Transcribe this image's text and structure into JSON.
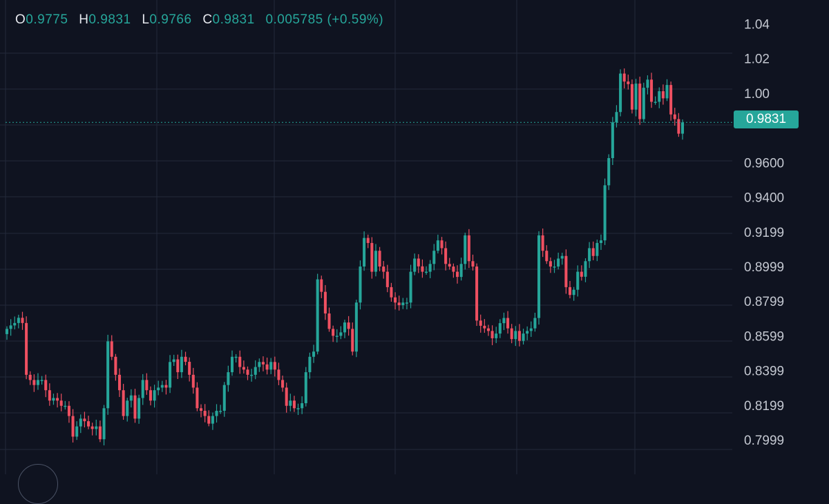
{
  "ohlc": {
    "o_key": "O",
    "o_val": "0.9775",
    "h_key": "H",
    "h_val": "0.9831",
    "l_key": "L",
    "l_val": "0.9766",
    "c_key": "C",
    "c_val": "0.9831",
    "change": "0.005785 (+0.59%)"
  },
  "price_badge": "0.9831",
  "colors": {
    "background": "#0f1320",
    "grid": "#232a3a",
    "up": "#26a69a",
    "down": "#ef5061",
    "tick_text": "#c4c8d1"
  },
  "chart_data": {
    "type": "candlestick",
    "y_axis_ticks": [
      "1.04",
      "1.02",
      "1.00",
      "0.9600",
      "0.9400",
      "0.9199",
      "0.8999",
      "0.8799",
      "0.8599",
      "0.8399",
      "0.8199",
      "0.7999"
    ],
    "ylim": [
      0.7943,
      1.0442
    ],
    "grid": true,
    "last_price": 0.9831,
    "closes": [
      0.8639,
      0.8659,
      0.8673,
      0.8703,
      0.8673,
      0.8374,
      0.8344,
      0.8315,
      0.8344,
      0.8344,
      0.8285,
      0.8225,
      0.824,
      0.8225,
      0.8195,
      0.8195,
      0.8136,
      0.8017,
      0.8076,
      0.8121,
      0.8106,
      0.8076,
      0.8061,
      0.8076,
      0.8002,
      0.8181,
      0.8567,
      0.8478,
      0.8374,
      0.8285,
      0.8136,
      0.8225,
      0.8255,
      0.8121,
      0.824,
      0.8344,
      0.8285,
      0.8225,
      0.8285,
      0.83,
      0.8315,
      0.83,
      0.8448,
      0.8463,
      0.8389,
      0.8478,
      0.8449,
      0.8374,
      0.83,
      0.8181,
      0.8166,
      0.8136,
      0.8092,
      0.8136,
      0.8166,
      0.8166,
      0.8315,
      0.8389,
      0.8478,
      0.8478,
      0.8419,
      0.8404,
      0.8374,
      0.8374,
      0.8419,
      0.8448,
      0.8434,
      0.8404,
      0.8448,
      0.8404,
      0.8344,
      0.83,
      0.8195,
      0.8225,
      0.8181,
      0.8181,
      0.821,
      0.8389,
      0.8478,
      0.8508,
      0.8925,
      0.8853,
      0.8728,
      0.8639,
      0.8599,
      0.8599,
      0.8619,
      0.8676,
      0.8639,
      0.8508,
      0.8791,
      0.8999,
      0.9164,
      0.9135,
      0.8969,
      0.909,
      0.8999,
      0.8969,
      0.888,
      0.8821,
      0.8791,
      0.8776,
      0.8791,
      0.8791,
      0.8969,
      0.9045,
      0.9,
      0.8969,
      0.8969,
      0.9014,
      0.909,
      0.915,
      0.9105,
      0.9014,
      0.8999,
      0.8969,
      0.8939,
      0.9014,
      0.9179,
      0.903,
      0.8999,
      0.8687,
      0.8657,
      0.8642,
      0.8627,
      0.8585,
      0.8612,
      0.8672,
      0.8702,
      0.8642,
      0.858,
      0.8627,
      0.857,
      0.8612,
      0.8627,
      0.8642,
      0.8702,
      0.9179,
      0.909,
      0.903,
      0.8999,
      0.8999,
      0.9045,
      0.906,
      0.888,
      0.8835,
      0.8865,
      0.8969,
      0.894,
      0.903,
      0.9105,
      0.906,
      0.9135,
      0.915,
      0.9468,
      0.9625,
      0.9831,
      0.9891,
      1.0113,
      1.0067,
      1.0052,
      0.9905,
      1.0055,
      0.985,
      1.0031,
      1.0078,
      0.995,
      0.995,
      1.0011,
      0.997,
      1.0047,
      0.9877,
      0.985,
      0.9766,
      0.9831
    ]
  }
}
